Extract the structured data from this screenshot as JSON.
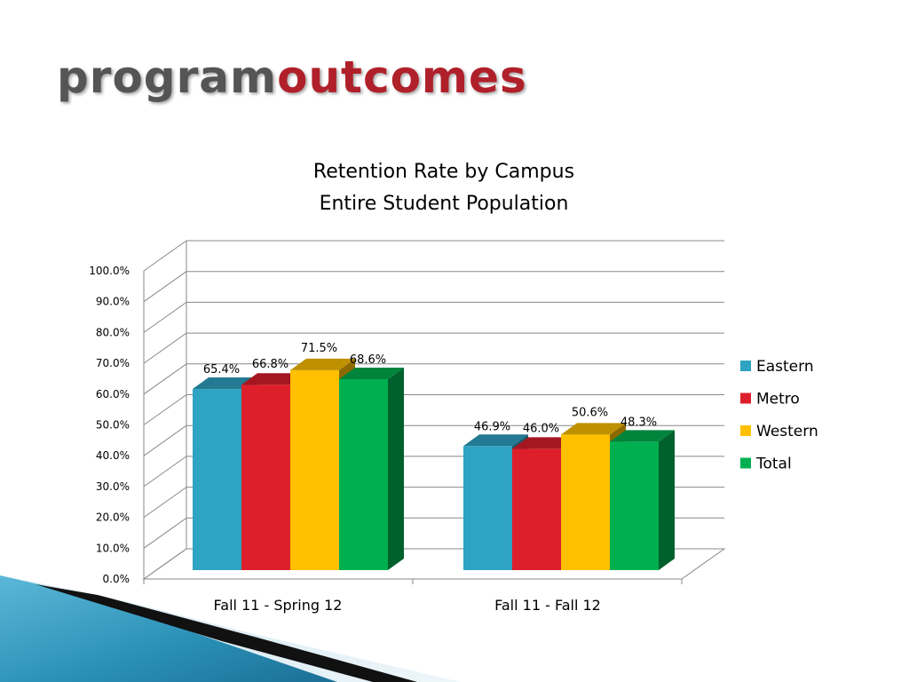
{
  "slide": {
    "title_part1": "program",
    "title_part2": "outcomes",
    "title_colors": [
      "#555555",
      "#b0202a"
    ]
  },
  "chart_data": {
    "type": "bar",
    "title": [
      "Retention Rate by Campus",
      "Entire Student Population"
    ],
    "categories": [
      "Fall 11 - Spring 12",
      "Fall 11 - Fall 12"
    ],
    "series": [
      {
        "name": "Eastern",
        "values": [
          65.4,
          46.9
        ],
        "labels": [
          "65.4%",
          "46.9%"
        ],
        "color": "#2ea3c2"
      },
      {
        "name": "Metro",
        "values": [
          66.8,
          46.0
        ],
        "labels": [
          "66.8%",
          "46.0%"
        ],
        "color": "#dc1f2a"
      },
      {
        "name": "Western",
        "values": [
          71.5,
          50.6
        ],
        "labels": [
          "71.5%",
          "50.6%"
        ],
        "color": "#ffc000"
      },
      {
        "name": "Total",
        "values": [
          68.6,
          48.3
        ],
        "labels": [
          "68.6%",
          "48.3%"
        ],
        "color": "#00b050"
      }
    ],
    "y_ticks": [
      "0.0%",
      "10.0%",
      "20.0%",
      "30.0%",
      "40.0%",
      "50.0%",
      "60.0%",
      "70.0%",
      "80.0%",
      "90.0%",
      "100.0%"
    ],
    "ylim": [
      0,
      100
    ],
    "grid": true,
    "legend_position": "right",
    "style": "3d-clustered-column"
  }
}
